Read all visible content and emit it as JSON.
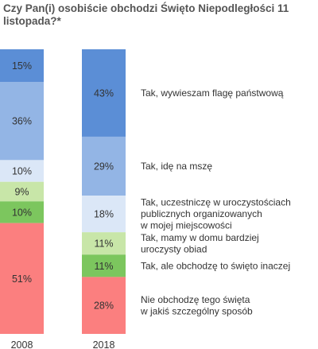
{
  "chart_data": {
    "type": "bar",
    "stacked": true,
    "title": "Czy Pan(i) osobiście obchodzi Święto Niepodległości 11 listopada?*",
    "categories": [
      "2008",
      "2018"
    ],
    "unit": "%",
    "series": [
      {
        "name": "Tak, wywieszam flagę państwową",
        "values": [
          15,
          43
        ],
        "color": "#5b8ed6"
      },
      {
        "name": "Tak, idę na mszę",
        "values": [
          36,
          29
        ],
        "color": "#93b5e5"
      },
      {
        "name": "Tak, uczestniczę w uroczystościach publicznych organizowanych w mojej miejscowości",
        "values": [
          10,
          18
        ],
        "color": "#dbe7f7"
      },
      {
        "name": "Tak, mamy w domu bardziej uroczysty obiad",
        "values": [
          9,
          11
        ],
        "color": "#c8e6a8"
      },
      {
        "name": "Tak, ale obchodzę to święto inaczej",
        "values": [
          10,
          11
        ],
        "color": "#7cc65e"
      },
      {
        "name": "Nie obchodzę tego święta w jakiś szczególny sposób",
        "values": [
          51,
          28
        ],
        "color": "#fb7f7f"
      }
    ],
    "legend_lines": [
      [
        "Tak, wywieszam flagę państwową"
      ],
      [
        "Tak, idę na mszę"
      ],
      [
        "Tak, uczestniczę w uroczystościach",
        "publicznych organizowanych",
        "w mojej miejscowości"
      ],
      [
        "Tak, mamy w domu bardziej",
        "uroczysty obiad"
      ],
      [
        "Tak, ale obchodzę to święto inaczej"
      ],
      [
        "Nie obchodzę tego święta",
        "w jakiś szczególny sposób"
      ]
    ],
    "legend_placement": "right"
  }
}
